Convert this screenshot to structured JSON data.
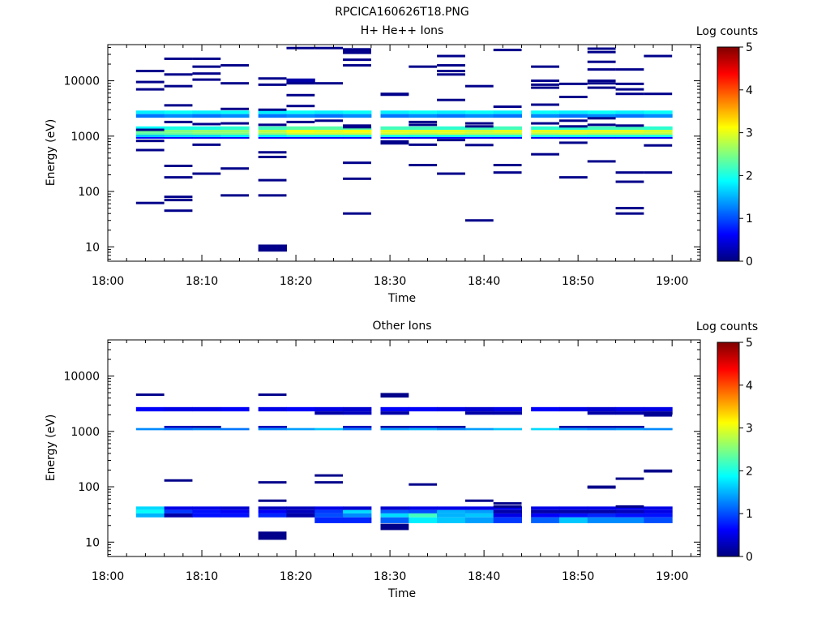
{
  "figure_title": "RPCICA160626T18.PNG",
  "colorbar": {
    "label": "Log counts",
    "ticks": [
      "0",
      "1",
      "2",
      "3",
      "4",
      "5"
    ],
    "range": [
      0,
      5
    ],
    "colormap": "jet"
  },
  "chart_data": [
    {
      "type": "heatmap",
      "title": "H+ He++ Ions",
      "xlabel": "Time",
      "ylabel": "Energy (eV)",
      "xlim": [
        "18:00",
        "19:03"
      ],
      "ylim": [
        5.5,
        45000
      ],
      "yscale": "log",
      "xticks": [
        "18:00",
        "18:10",
        "18:20",
        "18:30",
        "18:40",
        "18:50",
        "19:00"
      ],
      "yticks": [
        "10",
        "100",
        "1000",
        "10000"
      ],
      "time_bins": [
        "18:03",
        "18:06",
        "18:09",
        "18:12",
        "18:16",
        "18:19",
        "18:22",
        "18:25",
        "18:29",
        "18:32",
        "18:35",
        "18:38",
        "18:41",
        "18:45",
        "18:48",
        "18:51",
        "18:54",
        "18:57"
      ],
      "rows": [
        {
          "energy": [
            2500,
            2900
          ],
          "values": [
            1.8,
            1.9,
            1.8,
            1.9,
            1.8,
            1.9,
            1.8,
            1.9,
            1.8,
            1.9,
            1.8,
            1.9,
            1.8,
            1.9,
            1.8,
            1.9,
            1.8,
            1.9
          ]
        },
        {
          "energy": [
            2150,
            2500
          ],
          "values": [
            1.2,
            1.3,
            1.2,
            1.3,
            1.2,
            1.3,
            1.2,
            1.3,
            1.2,
            1.3,
            1.2,
            1.3,
            1.2,
            1.3,
            1.2,
            1.3,
            1.2,
            1.3
          ]
        },
        {
          "energy": [
            1300,
            1500
          ],
          "values": [
            1.9,
            2.0,
            2.0,
            2.1,
            2.2,
            2.3,
            2.3,
            2.3,
            2.2,
            2.2,
            2.1,
            2.2,
            2.2,
            2.1,
            2.1,
            2.2,
            2.2,
            2.1
          ]
        },
        {
          "energy": [
            1150,
            1300
          ],
          "values": [
            2.4,
            2.5,
            2.6,
            2.6,
            2.8,
            3.1,
            3.0,
            3.1,
            3.0,
            3.0,
            3.0,
            2.9,
            3.0,
            3.0,
            3.0,
            3.0,
            3.0,
            2.9
          ]
        },
        {
          "energy": [
            1060,
            1150
          ],
          "values": [
            2.3,
            2.4,
            2.5,
            2.5,
            2.6,
            2.9,
            2.9,
            2.9,
            2.9,
            2.8,
            2.9,
            2.8,
            2.8,
            2.8,
            2.9,
            2.8,
            2.8,
            2.8
          ]
        },
        {
          "energy": [
            960,
            1060
          ],
          "values": [
            1.6,
            1.7,
            1.7,
            1.8,
            1.8,
            2.0,
            2.0,
            2.0,
            2.0,
            2.0,
            2.0,
            2.0,
            2.0,
            2.0,
            2.0,
            2.0,
            2.0,
            2.0
          ]
        },
        {
          "energy": [
            900,
            960
          ],
          "values": [
            0.6,
            0.6,
            0.6,
            0.6,
            0.6,
            0.6,
            0.6,
            0.6,
            0.6,
            0.6,
            0.6,
            0.6,
            0.6,
            0.6,
            0.6,
            0.6,
            0.6,
            0.6
          ]
        },
        {
          "energy": [
            9000,
            11000
          ],
          "bins": [
            5
          ],
          "values": [
            0.2
          ]
        },
        {
          "energy": [
            8.2,
            11
          ],
          "bins": [
            4
          ],
          "values": [
            0.05
          ]
        }
      ],
      "sporadic": [
        [
          0,
          15000
        ],
        [
          0,
          9500
        ],
        [
          0,
          7000
        ],
        [
          0,
          1300
        ],
        [
          0,
          820
        ],
        [
          0,
          560
        ],
        [
          0,
          62
        ],
        [
          1,
          25000
        ],
        [
          1,
          13000
        ],
        [
          1,
          8000
        ],
        [
          1,
          3600
        ],
        [
          1,
          1800
        ],
        [
          1,
          290
        ],
        [
          1,
          180
        ],
        [
          1,
          80
        ],
        [
          1,
          70
        ],
        [
          1,
          45
        ],
        [
          2,
          25000
        ],
        [
          2,
          18000
        ],
        [
          2,
          13500
        ],
        [
          2,
          10500
        ],
        [
          2,
          1650
        ],
        [
          2,
          700
        ],
        [
          2,
          210
        ],
        [
          3,
          19000
        ],
        [
          3,
          9000
        ],
        [
          3,
          3100
        ],
        [
          3,
          1700
        ],
        [
          3,
          260
        ],
        [
          3,
          85
        ],
        [
          4,
          11000
        ],
        [
          4,
          8500
        ],
        [
          4,
          3000
        ],
        [
          4,
          1600
        ],
        [
          4,
          510
        ],
        [
          4,
          420
        ],
        [
          4,
          160
        ],
        [
          4,
          85
        ],
        [
          5,
          39000
        ],
        [
          5,
          9000
        ],
        [
          5,
          5500
        ],
        [
          5,
          3500
        ],
        [
          5,
          1800
        ],
        [
          6,
          39000
        ],
        [
          6,
          9000
        ],
        [
          6,
          1900
        ],
        [
          7,
          37000
        ],
        [
          7,
          35000
        ],
        [
          7,
          32000
        ],
        [
          7,
          24000
        ],
        [
          7,
          19000
        ],
        [
          7,
          1550
        ],
        [
          7,
          1450
        ],
        [
          7,
          330
        ],
        [
          7,
          170
        ],
        [
          7,
          40
        ],
        [
          8,
          5800
        ],
        [
          8,
          5600
        ],
        [
          8,
          800
        ],
        [
          8,
          740
        ],
        [
          9,
          18000
        ],
        [
          9,
          1800
        ],
        [
          9,
          1600
        ],
        [
          9,
          700
        ],
        [
          9,
          300
        ],
        [
          10,
          28000
        ],
        [
          10,
          19000
        ],
        [
          10,
          15000
        ],
        [
          10,
          13000
        ],
        [
          10,
          4500
        ],
        [
          10,
          850
        ],
        [
          10,
          210
        ],
        [
          11,
          8000
        ],
        [
          11,
          1700
        ],
        [
          11,
          1500
        ],
        [
          11,
          690
        ],
        [
          11,
          30
        ],
        [
          12,
          36000
        ],
        [
          12,
          3400
        ],
        [
          12,
          300
        ],
        [
          12,
          220
        ],
        [
          13,
          18000
        ],
        [
          13,
          10000
        ],
        [
          13,
          8500
        ],
        [
          13,
          7500
        ],
        [
          13,
          3700
        ],
        [
          13,
          1700
        ],
        [
          13,
          470
        ],
        [
          14,
          8800
        ],
        [
          14,
          5100
        ],
        [
          14,
          1900
        ],
        [
          14,
          1500
        ],
        [
          14,
          760
        ],
        [
          14,
          180
        ],
        [
          15,
          38000
        ],
        [
          15,
          33000
        ],
        [
          15,
          22000
        ],
        [
          15,
          16000
        ],
        [
          15,
          10000
        ],
        [
          15,
          9000
        ],
        [
          15,
          7500
        ],
        [
          15,
          2100
        ],
        [
          15,
          1600
        ],
        [
          15,
          350
        ],
        [
          16,
          16000
        ],
        [
          16,
          8800
        ],
        [
          16,
          7000
        ],
        [
          16,
          5800
        ],
        [
          16,
          1550
        ],
        [
          16,
          220
        ],
        [
          16,
          150
        ],
        [
          16,
          50
        ],
        [
          16,
          40
        ],
        [
          17,
          28000
        ],
        [
          17,
          5800
        ],
        [
          17,
          680
        ],
        [
          17,
          220
        ]
      ]
    },
    {
      "type": "heatmap",
      "title": "Other Ions",
      "xlabel": "Time",
      "ylabel": "Energy (eV)",
      "xlim": [
        "18:00",
        "19:03"
      ],
      "ylim": [
        5.5,
        45000
      ],
      "yscale": "log",
      "xticks": [
        "18:00",
        "18:10",
        "18:20",
        "18:30",
        "18:40",
        "18:50",
        "19:00"
      ],
      "yticks": [
        "10",
        "100",
        "1000",
        "10000"
      ],
      "time_bins": [
        "18:03",
        "18:06",
        "18:09",
        "18:12",
        "18:16",
        "18:19",
        "18:22",
        "18:25",
        "18:29",
        "18:32",
        "18:35",
        "18:38",
        "18:41",
        "18:45",
        "18:48",
        "18:51",
        "18:54",
        "18:57"
      ],
      "rows": [
        {
          "energy": [
            2300,
            2750
          ],
          "values": [
            0.6,
            0.5,
            0.5,
            0.6,
            0.5,
            0.6,
            0.5,
            0.4,
            0.6,
            0.6,
            0.5,
            0.4,
            0.5,
            0.6,
            0.5,
            0.4,
            0.5,
            0.5
          ]
        },
        {
          "energy": [
            2000,
            2300
          ],
          "bins": [
            6,
            7,
            8,
            11,
            12,
            15,
            16,
            17
          ],
          "values": [
            0.2,
            0.3,
            0.2,
            0.2,
            0.2,
            0.2,
            0.2,
            0.1
          ]
        },
        {
          "energy": [
            1150,
            1260
          ],
          "bins": [
            1,
            2,
            4,
            7,
            8,
            9,
            10,
            14,
            15,
            16
          ],
          "values": [
            0.3,
            0.2,
            0.3,
            0.3,
            0.2,
            0.3,
            0.2,
            0.2,
            0.2,
            0.2
          ]
        },
        {
          "energy": [
            1050,
            1150
          ],
          "values": [
            1.3,
            1.2,
            1.3,
            1.2,
            1.3,
            1.4,
            1.6,
            1.2,
            1.4,
            1.5,
            1.3,
            1.4,
            1.6,
            1.7,
            1.4,
            1.3,
            1.4,
            1.3
          ]
        },
        {
          "energy": [
            38,
            44
          ],
          "values": [
            1.7,
            0.5,
            0.5,
            0.4,
            0.3,
            0.3,
            0.5,
            0.4,
            0.4,
            0.5,
            0.5,
            0.5,
            0.5,
            0.5,
            0.5,
            0.5,
            0.5,
            0.5
          ]
        },
        {
          "energy": [
            33,
            38
          ],
          "values": [
            1.9,
            0.9,
            0.7,
            0.6,
            0.6,
            0.3,
            0.9,
            1.7,
            1.1,
            1.0,
            1.5,
            1.4,
            0.2,
            0.2,
            0.2,
            0.2,
            0.3,
            0.5
          ]
        },
        {
          "energy": [
            28,
            33
          ],
          "values": [
            1.5,
            0.2,
            0.7,
            0.7,
            0.8,
            0.2,
            1.0,
            1.3,
            1.7,
            2.2,
            1.5,
            1.6,
            0.5,
            0.6,
            0.7,
            0.8,
            0.7,
            0.7
          ]
        },
        {
          "energy": [
            22,
            28
          ],
          "bins": [
            6,
            7,
            8,
            9,
            10,
            11,
            12,
            13,
            14,
            15,
            16,
            17
          ],
          "values": [
            0.8,
            0.8,
            1.1,
            1.8,
            1.6,
            1.4,
            0.9,
            1.1,
            1.6,
            1.3,
            1.3,
            1.0
          ]
        }
      ],
      "sporadic": [
        [
          0,
          4600
        ],
        [
          1,
          130
        ],
        [
          4,
          4600
        ],
        [
          4,
          120
        ],
        [
          4,
          56
        ],
        [
          6,
          160
        ],
        [
          6,
          120
        ],
        [
          8,
          4700
        ],
        [
          8,
          4300
        ],
        [
          9,
          110
        ],
        [
          11,
          56
        ],
        [
          12,
          50
        ],
        [
          12,
          44
        ],
        [
          15,
          100
        ],
        [
          15,
          97
        ],
        [
          16,
          140
        ],
        [
          16,
          44
        ],
        [
          17,
          195
        ],
        [
          17,
          190
        ]
      ],
      "blocks": [
        {
          "bins": [
            4
          ],
          "energy": [
            11,
            15.5
          ],
          "value": 0.05
        },
        {
          "bins": [
            8
          ],
          "energy": [
            16.5,
            21.5
          ],
          "value": 0.05
        },
        {
          "bins": [
            17
          ],
          "energy": [
            1850,
            2150
          ],
          "value": 0.1
        }
      ]
    }
  ]
}
